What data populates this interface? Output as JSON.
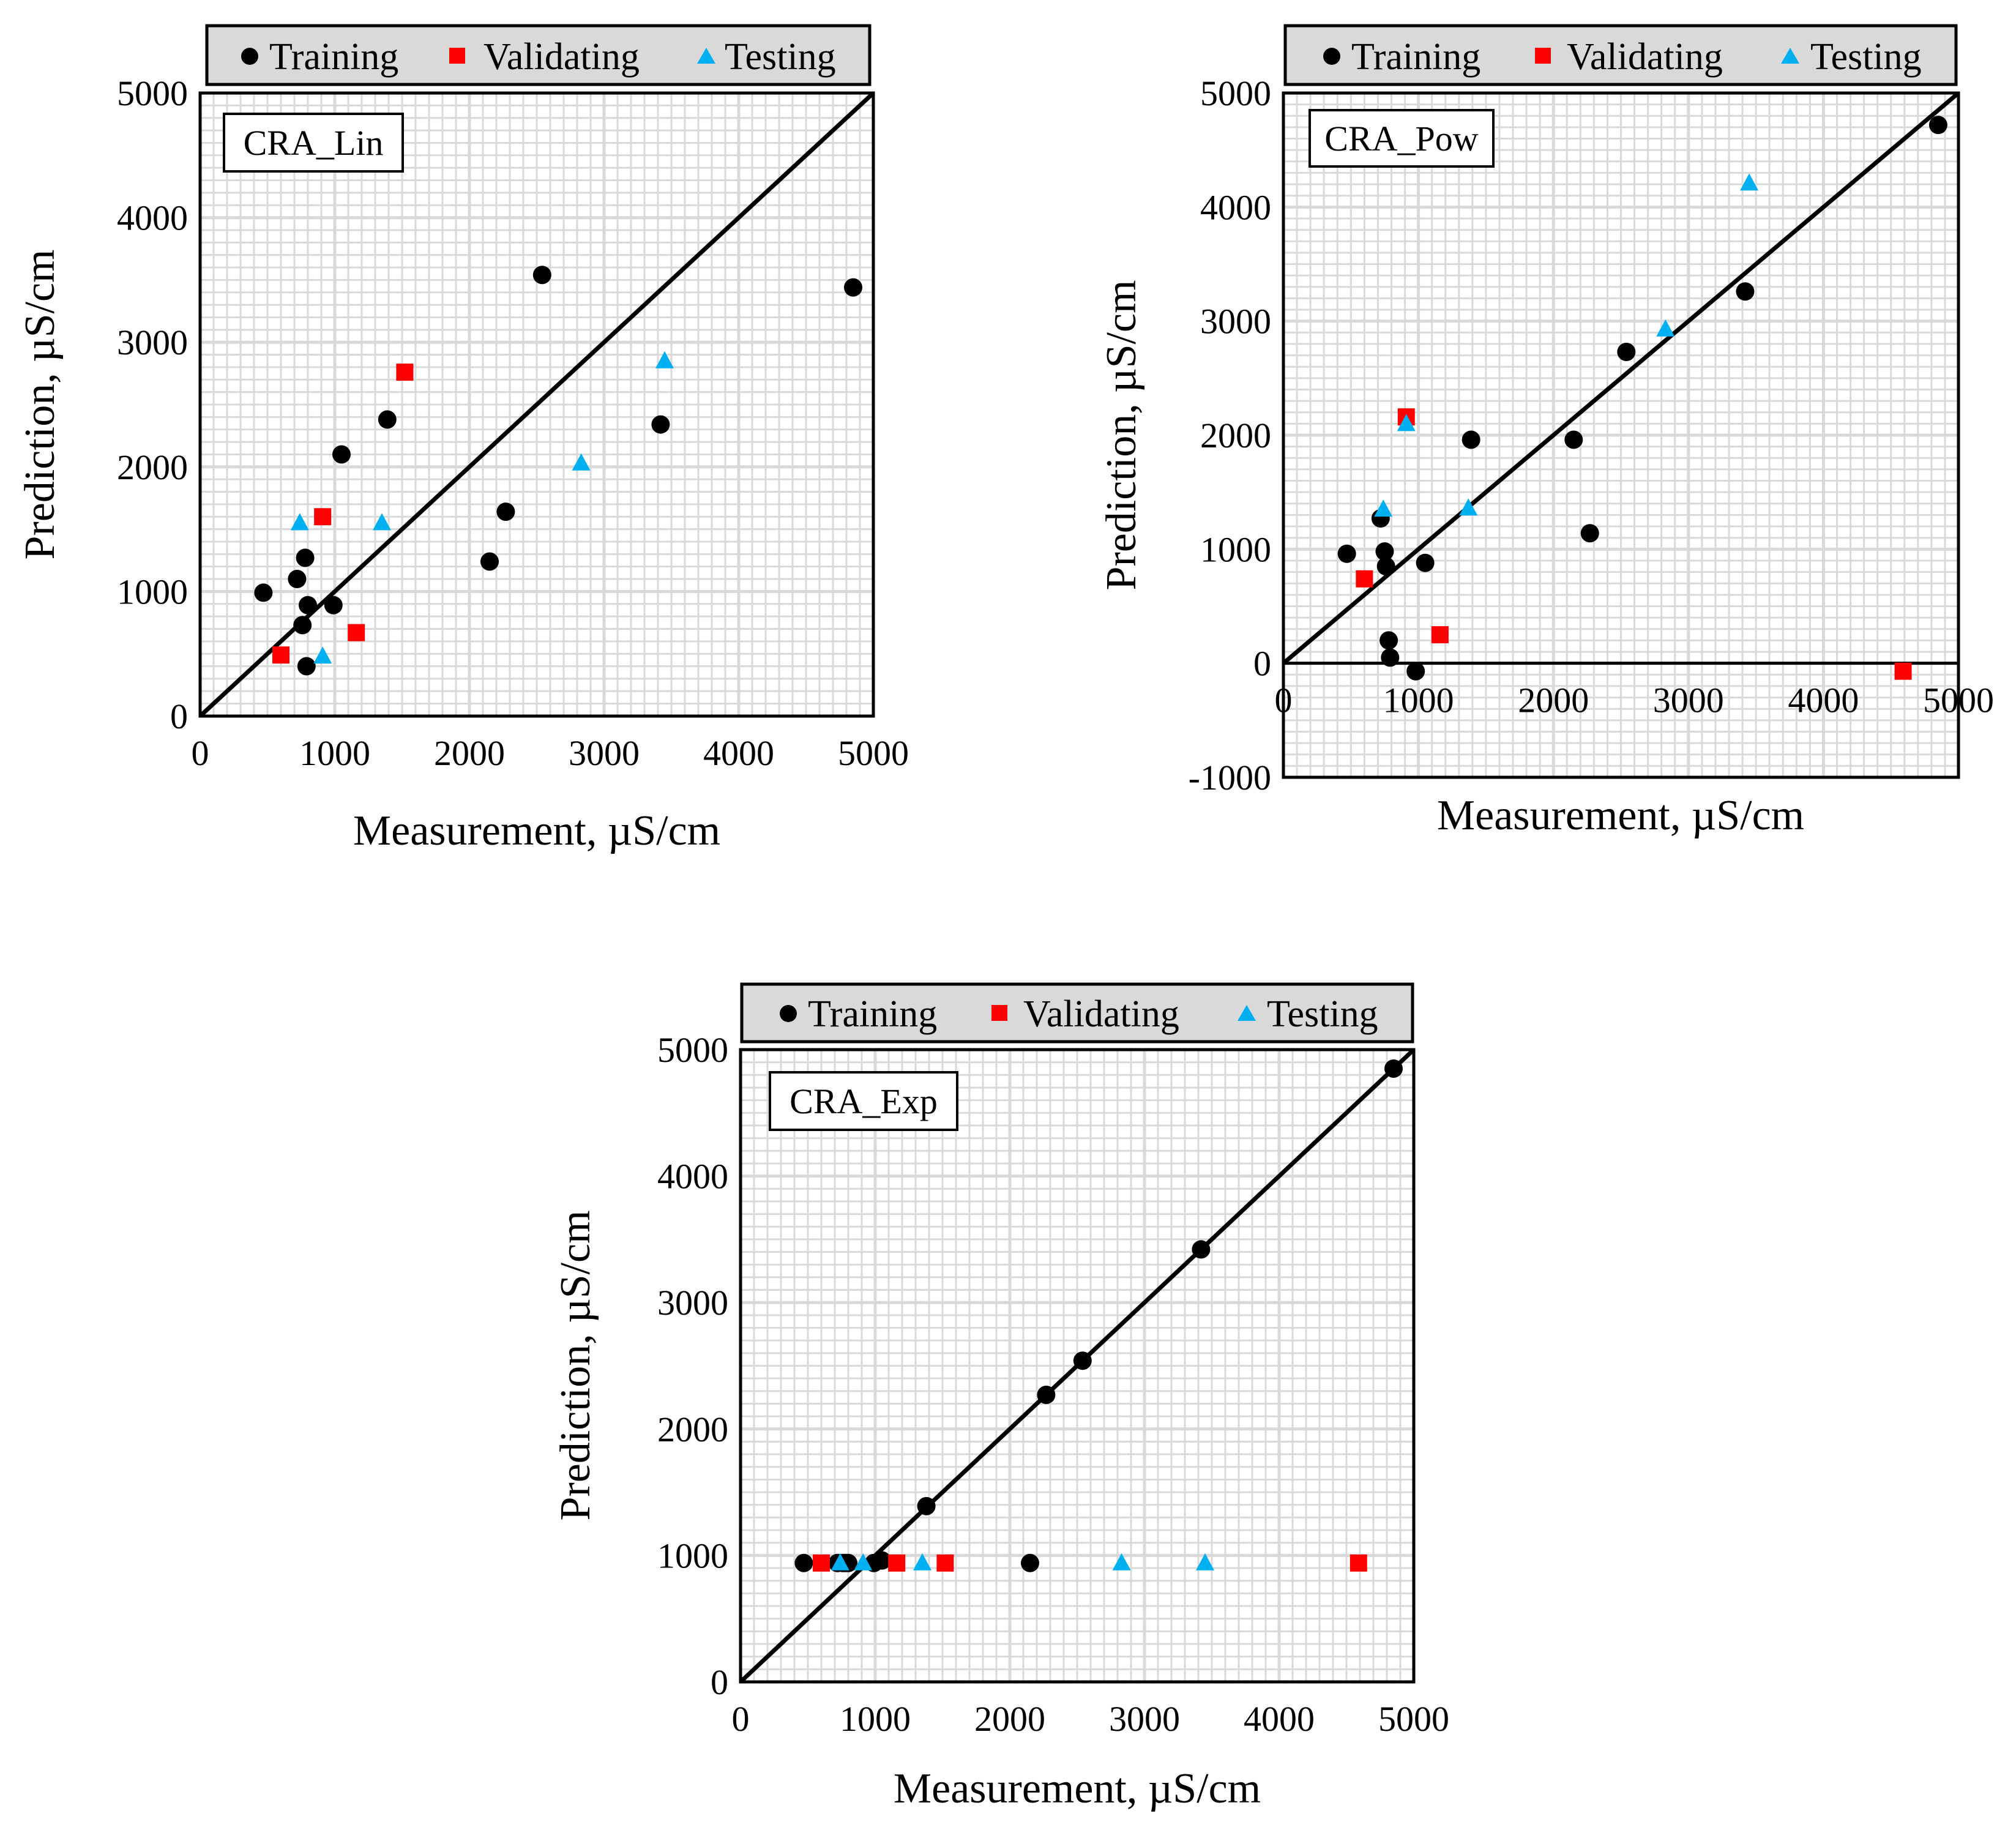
{
  "colors": {
    "training": "#000000",
    "validating": "#ff0000",
    "testing": "#00b0f0",
    "grid": "#d9d9d9",
    "legend_bg": "#d9d9d9",
    "plot_bg": "#ffffff"
  },
  "legend": {
    "training": "Training",
    "validating": "Validating",
    "testing": "Testing"
  },
  "chart_data": [
    {
      "type": "scatter",
      "model_label": "CRA_Lin",
      "xlabel": "Measurement, µS/cm",
      "ylabel": "Prediction, µS/cm",
      "xlim": [
        0,
        5000
      ],
      "ylim": [
        0,
        5000
      ],
      "xticks": [
        "0",
        "1000",
        "2000",
        "3000",
        "4000",
        "5000"
      ],
      "yticks": [
        "0",
        "1000",
        "2000",
        "3000",
        "4000",
        "5000"
      ],
      "grid": true,
      "reference_line": [
        [
          0,
          0
        ],
        [
          5000,
          5000
        ]
      ],
      "series": [
        {
          "name": "Training",
          "x": [
            470,
            720,
            760,
            780,
            800,
            990,
            1050,
            1390,
            2150,
            2270,
            2540,
            3420,
            4850,
            790
          ],
          "y": [
            990,
            1100,
            730,
            1270,
            890,
            890,
            2100,
            2380,
            1240,
            1640,
            3540,
            2340,
            3440,
            400
          ]
        },
        {
          "name": "Validating",
          "x": [
            600,
            910,
            1160,
            1520
          ],
          "y": [
            490,
            1600,
            670,
            2760
          ]
        },
        {
          "name": "Testing",
          "x": [
            740,
            910,
            1350,
            2830,
            3450
          ],
          "y": [
            1550,
            480,
            1550,
            2030,
            2850
          ]
        }
      ]
    },
    {
      "type": "scatter",
      "model_label": "CRA_Pow",
      "xlabel": "Measurement, µS/cm",
      "ylabel": "Prediction, µS/cm",
      "xlim": [
        0,
        5000
      ],
      "ylim": [
        -1000,
        5000
      ],
      "xticks": [
        "0",
        "1000",
        "2000",
        "3000",
        "4000",
        "5000"
      ],
      "yticks": [
        "-1000",
        "0",
        "1000",
        "2000",
        "3000",
        "4000",
        "5000"
      ],
      "grid": true,
      "reference_line": [
        [
          0,
          0
        ],
        [
          5000,
          5000
        ]
      ],
      "series": [
        {
          "name": "Training",
          "x": [
            470,
            720,
            750,
            760,
            780,
            790,
            980,
            1050,
            1390,
            2150,
            2270,
            2540,
            3420,
            4850
          ],
          "y": [
            960,
            1270,
            980,
            850,
            200,
            50,
            -70,
            880,
            1960,
            1960,
            1140,
            2730,
            3260,
            4720
          ]
        },
        {
          "name": "Validating",
          "x": [
            600,
            910,
            1160,
            4590
          ],
          "y": [
            740,
            2160,
            250,
            -70
          ]
        },
        {
          "name": "Testing",
          "x": [
            740,
            910,
            1370,
            2830,
            3450
          ],
          "y": [
            1350,
            2100,
            1360,
            2930,
            4210
          ]
        }
      ]
    },
    {
      "type": "scatter",
      "model_label": "CRA_Exp",
      "xlabel": "Measurement, µS/cm",
      "ylabel": "Prediction, µS/cm",
      "xlim": [
        0,
        5000
      ],
      "ylim": [
        0,
        5000
      ],
      "xticks": [
        "0",
        "1000",
        "2000",
        "3000",
        "4000",
        "5000"
      ],
      "yticks": [
        "0",
        "1000",
        "2000",
        "3000",
        "4000",
        "5000"
      ],
      "grid": true,
      "reference_line": [
        [
          0,
          0
        ],
        [
          5000,
          5000
        ]
      ],
      "series": [
        {
          "name": "Training",
          "x": [
            470,
            720,
            760,
            780,
            800,
            990,
            1050,
            1380,
            2150,
            2270,
            2540,
            3420,
            4850
          ],
          "y": [
            940,
            940,
            940,
            940,
            940,
            940,
            960,
            1390,
            940,
            2270,
            2540,
            3420,
            4850
          ]
        },
        {
          "name": "Validating",
          "x": [
            600,
            1160,
            1520,
            4590
          ],
          "y": [
            940,
            940,
            940,
            940
          ]
        },
        {
          "name": "Testing",
          "x": [
            740,
            910,
            1350,
            2830,
            3450
          ],
          "y": [
            940,
            940,
            940,
            940,
            940
          ]
        }
      ]
    }
  ]
}
